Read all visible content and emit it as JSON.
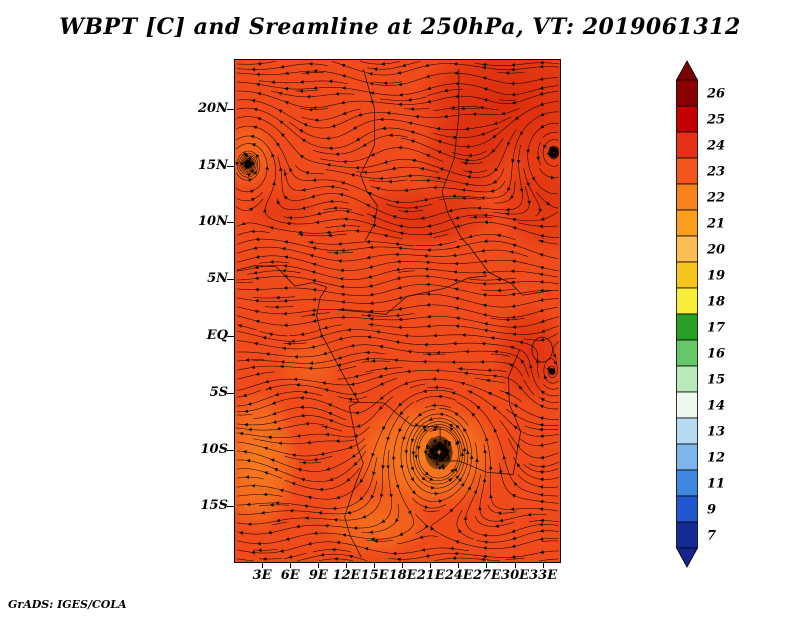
{
  "title": "WBPT [C] and Sreamline at 250hPa, VT: 2019061312",
  "footer": "GrADS: IGES/COLA",
  "colors": {
    "page_bg": "#ffffff",
    "streamline": "#000000",
    "map_base": "#ef4b1b",
    "map_dark_patch": "#d92a0c",
    "map_light_patch": "#f9881f",
    "axis_text": "#000000",
    "frame": "#000000"
  },
  "chart_data": {
    "type": "heatmap",
    "title": "WBPT [C] and Sreamline at 250hPa, VT: 2019061312",
    "variable": "WBPT",
    "units": "C",
    "level": "250hPa",
    "valid_time": "2019061312",
    "overlay": "streamlines",
    "x_ticks": [
      "3E",
      "6E",
      "9E",
      "12E",
      "15E",
      "18E",
      "21E",
      "24E",
      "27E",
      "30E",
      "33E"
    ],
    "x_tick_lons": [
      3,
      6,
      9,
      12,
      15,
      18,
      21,
      24,
      27,
      30,
      33
    ],
    "y_ticks": [
      "20N",
      "15N",
      "10N",
      "5N",
      "EQ",
      "5S",
      "10S",
      "15S"
    ],
    "y_tick_lats": [
      20,
      15,
      10,
      5,
      0,
      -5,
      -10,
      -15
    ],
    "lon_range": [
      0.1,
      34.8
    ],
    "lat_range": [
      -19.9,
      24.3
    ],
    "grid_on": false,
    "colorbar": {
      "position": "right",
      "labels": [
        "26",
        "25",
        "24",
        "23",
        "22",
        "21",
        "20",
        "19",
        "18",
        "17",
        "16",
        "15",
        "14",
        "13",
        "12",
        "11",
        "9",
        "7"
      ],
      "colors": [
        "#8b0000",
        "#c40000",
        "#e63118",
        "#f2561f",
        "#f9811b",
        "#fb9e1c",
        "#fdbd55",
        "#f6c51c",
        "#f8ee38",
        "#28a028",
        "#66c766",
        "#b9e8b9",
        "#eff8ef",
        "#b6daf2",
        "#7db6ea",
        "#3f87e0",
        "#2257cf",
        "#142b94"
      ],
      "above_color": "#7c0000",
      "below_color": "#16248f"
    },
    "circulation_centers": [
      {
        "lon": 1.5,
        "lat": 15.5
      },
      {
        "lon": 21.8,
        "lat": -9.8
      },
      {
        "lon": 34.2,
        "lat": 16.5
      },
      {
        "lon": 33.8,
        "lat": -4.0
      }
    ],
    "values_estimated_grid": {
      "lons": [
        3,
        6,
        9,
        12,
        15,
        18,
        21,
        24,
        27,
        30,
        33
      ],
      "lats": [
        20,
        15,
        10,
        5,
        0,
        -5,
        -10,
        -15
      ],
      "wbpt": [
        [
          23,
          23,
          23,
          23,
          24,
          24,
          24,
          25,
          25,
          25,
          25
        ],
        [
          22,
          23,
          23,
          23,
          24,
          24,
          24,
          24,
          25,
          25,
          25
        ],
        [
          23,
          23,
          23,
          24,
          24,
          24,
          24,
          24,
          24,
          24,
          24
        ],
        [
          23,
          23,
          23,
          23,
          23,
          23,
          24,
          24,
          24,
          24,
          24
        ],
        [
          23,
          23,
          23,
          23,
          23,
          23,
          23,
          23,
          24,
          24,
          24
        ],
        [
          22,
          23,
          23,
          23,
          22,
          22,
          23,
          23,
          23,
          24,
          23
        ],
        [
          22,
          22,
          23,
          22,
          22,
          22,
          22,
          22,
          23,
          23,
          23
        ],
        [
          23,
          23,
          23,
          23,
          23,
          22,
          22,
          23,
          23,
          23,
          23
        ]
      ]
    }
  }
}
